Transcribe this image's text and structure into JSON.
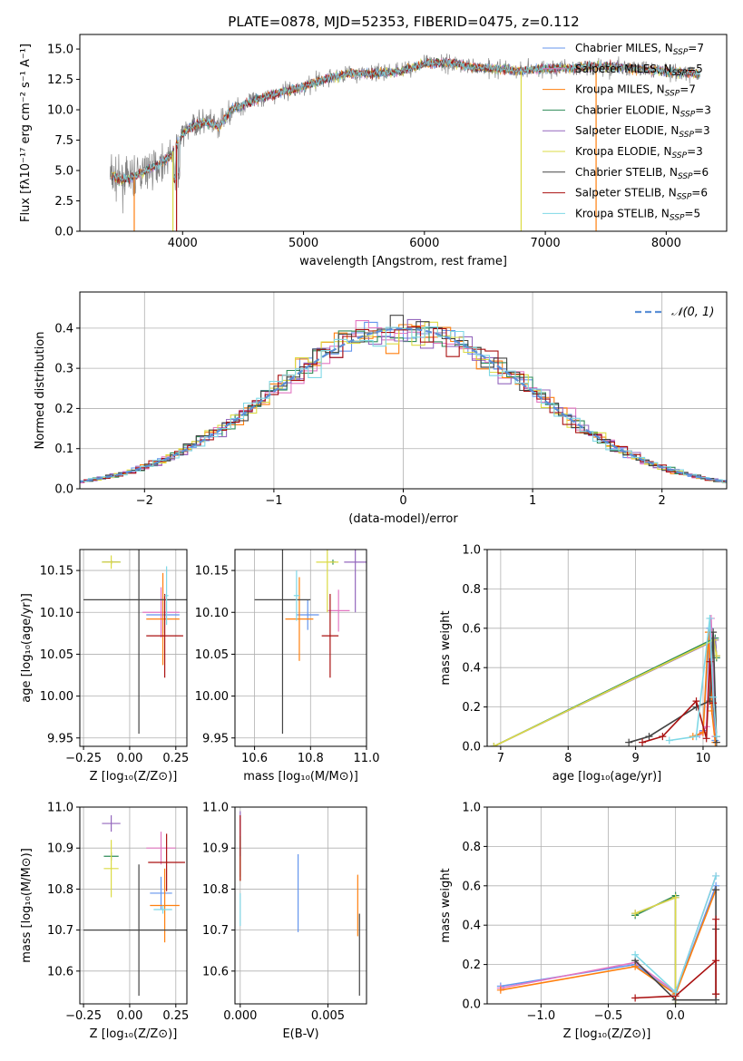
{
  "figure_title": "PLATE=0878, MJD=52353, FIBERID=0475, z=0.112",
  "colors": {
    "Chabrier MILES": "#6495ed",
    "Salpeter MILES": "#e377c2",
    "Kroupa MILES": "#ff7f0e",
    "Chabrier ELODIE": "#2e8b57",
    "Salpeter ELODIE": "#9467bd",
    "Kroupa ELODIE": "#dbdb44",
    "Chabrier STELIB": "#444444",
    "Salpeter STELIB": "#aa1111",
    "Kroupa STELIB": "#7fd8e6",
    "data": "#808080",
    "normal": "#5b8fd6"
  },
  "chart_data": [
    {
      "id": "spectrum",
      "type": "line",
      "title": "PLATE=0878, MJD=52353, FIBERID=0475, z=0.112",
      "xlabel": "wavelength [Angstrom, rest frame]",
      "ylabel": "Flux [fλ10⁻¹⁷ erg cm⁻² s⁻¹ A⁻¹]",
      "xlim": [
        3150,
        8500
      ],
      "ylim": [
        0,
        16.2
      ],
      "xticks": [
        4000,
        5000,
        6000,
        7000,
        8000
      ],
      "yticks": [
        0.0,
        2.5,
        5.0,
        7.5,
        10.0,
        12.5,
        15.0
      ],
      "continuum": {
        "x": [
          3400,
          3500,
          3600,
          3700,
          3800,
          3900,
          4000,
          4100,
          4200,
          4300,
          4400,
          4600,
          4800,
          5000,
          5200,
          5400,
          5600,
          5800,
          6000,
          6200,
          6400,
          6600,
          6800,
          7000,
          7200,
          7400,
          7600,
          7800,
          8000,
          8200,
          8280
        ],
        "y": [
          4.6,
          4.2,
          4.5,
          5.0,
          5.5,
          6.2,
          8.0,
          8.8,
          9.0,
          8.6,
          10.0,
          10.8,
          11.4,
          11.9,
          12.6,
          13.0,
          13.0,
          13.2,
          13.8,
          13.9,
          13.5,
          13.4,
          13.2,
          13.4,
          13.4,
          13.6,
          13.5,
          13.3,
          13.2,
          13.0,
          12.9
        ]
      },
      "series": [
        {
          "name": "Chabrier MILES",
          "nssp": "7"
        },
        {
          "name": "Salpeter MILES",
          "nssp": "5"
        },
        {
          "name": "Kroupa MILES",
          "nssp": "7"
        },
        {
          "name": "Chabrier ELODIE",
          "nssp": "3"
        },
        {
          "name": "Salpeter ELODIE",
          "nssp": "3"
        },
        {
          "name": "Kroupa ELODIE",
          "nssp": "3"
        },
        {
          "name": "Chabrier STELIB",
          "nssp": "6"
        },
        {
          "name": "Salpeter STELIB",
          "nssp": "6"
        },
        {
          "name": "Kroupa STELIB",
          "nssp": "5"
        }
      ],
      "legend_position": "right",
      "legend_prefix": "N",
      "legend_subscript": "SSP"
    },
    {
      "id": "residuals",
      "type": "histogram",
      "xlabel": "(data-model)/error",
      "ylabel": "Normed distribution",
      "xlim": [
        -2.5,
        2.5
      ],
      "ylim": [
        0,
        0.49
      ],
      "xticks": [
        -2,
        -1,
        0,
        1,
        2
      ],
      "yticks": [
        0.0,
        0.1,
        0.2,
        0.3,
        0.4
      ],
      "grid": true,
      "legend_label": "𝒩(0, 1)",
      "legend_position": "top-right",
      "bin_width": 0.1
    },
    {
      "id": "age_vs_Z",
      "type": "errorbar",
      "xlabel": "Z [log₁₀(Z/Z⊙)]",
      "ylabel": "age  [log₁₀(age/yr)]",
      "xlim": [
        -0.27,
        0.31
      ],
      "ylim": [
        9.94,
        10.175
      ],
      "xticks": [
        -0.25,
        0.0,
        0.25
      ],
      "xticklabels": [
        "−0.25",
        "0.00",
        "0.25"
      ],
      "yticks": [
        9.95,
        10.0,
        10.05,
        10.1,
        10.15
      ],
      "yticklabels": [
        "9.95",
        "10.00",
        "10.05",
        "10.10",
        "10.15"
      ],
      "grid": true,
      "points": [
        {
          "series": "Chabrier MILES",
          "x": 0.18,
          "xerr": 0.09,
          "y": 10.097,
          "yerr": 0.022
        },
        {
          "series": "Salpeter MILES",
          "x": 0.17,
          "xerr": 0.1,
          "y": 10.1,
          "yerr": 0.03
        },
        {
          "series": "Kroupa MILES",
          "x": 0.18,
          "xerr": 0.09,
          "y": 10.092,
          "yerr": 0.055
        },
        {
          "series": "Chabrier ELODIE",
          "x": -0.1,
          "xerr": 0.05,
          "y": 10.16,
          "yerr": 0.002
        },
        {
          "series": "Salpeter ELODIE",
          "x": -0.1,
          "xerr": 0.04,
          "y": 10.16,
          "yerr": 0.002
        },
        {
          "series": "Kroupa ELODIE",
          "x": -0.1,
          "xerr": 0.05,
          "y": 10.16,
          "yerr": 0.008
        },
        {
          "series": "Chabrier STELIB",
          "x": 0.05,
          "xerr": 0.3,
          "y": 10.115,
          "yerr": 0.16
        },
        {
          "series": "Salpeter STELIB",
          "x": 0.19,
          "xerr": 0.1,
          "y": 10.072,
          "yerr": 0.05
        },
        {
          "series": "Kroupa STELIB",
          "x": 0.2,
          "xerr": 0.01,
          "y": 10.12,
          "yerr": 0.035
        }
      ]
    },
    {
      "id": "age_vs_mass",
      "type": "errorbar",
      "xlabel": "mass [log₁₀(M/M⊙)]",
      "ylabel": "",
      "xlim": [
        10.53,
        11.0
      ],
      "ylim": [
        9.94,
        10.175
      ],
      "xticks": [
        10.6,
        10.8,
        11.0
      ],
      "xticklabels": [
        "10.6",
        "10.8",
        "11.0"
      ],
      "yticks": [
        9.95,
        10.0,
        10.05,
        10.1,
        10.15
      ],
      "yticklabels": [
        "9.95",
        "10.00",
        "10.05",
        "10.10",
        "10.15"
      ],
      "grid": true,
      "points": [
        {
          "series": "Chabrier MILES",
          "x": 10.79,
          "xerr": 0.04,
          "y": 10.097,
          "yerr": 0.018
        },
        {
          "series": "Salpeter MILES",
          "x": 10.9,
          "xerr": 0.04,
          "y": 10.102,
          "yerr": 0.025
        },
        {
          "series": "Kroupa MILES",
          "x": 10.76,
          "xerr": 0.05,
          "y": 10.092,
          "yerr": 0.05
        },
        {
          "series": "Chabrier ELODIE",
          "x": 10.88,
          "xerr": 0.01,
          "y": 10.16,
          "yerr": 0.003
        },
        {
          "series": "Salpeter ELODIE",
          "x": 10.96,
          "xerr": 0.04,
          "y": 10.16,
          "yerr": 0.06
        },
        {
          "series": "Kroupa ELODIE",
          "x": 10.86,
          "xerr": 0.04,
          "y": 10.16,
          "yerr": 0.06
        },
        {
          "series": "Chabrier STELIB",
          "x": 10.7,
          "xerr": 0.1,
          "y": 10.115,
          "yerr": 0.16
        },
        {
          "series": "Salpeter STELIB",
          "x": 10.87,
          "xerr": 0.03,
          "y": 10.072,
          "yerr": 0.05
        },
        {
          "series": "Kroupa STELIB",
          "x": 10.75,
          "xerr": 0.01,
          "y": 10.12,
          "yerr": 0.03
        }
      ]
    },
    {
      "id": "mass_vs_Z",
      "type": "errorbar",
      "xlabel": "Z [log₁₀(Z/Z⊙)]",
      "ylabel": "mass [log₁₀(M/M⊙)]",
      "xlim": [
        -0.27,
        0.31
      ],
      "ylim": [
        10.52,
        11.0
      ],
      "xticks": [
        -0.25,
        0.0,
        0.25
      ],
      "xticklabels": [
        "−0.25",
        "0.00",
        "0.25"
      ],
      "yticks": [
        10.6,
        10.7,
        10.8,
        10.9,
        11.0
      ],
      "yticklabels": [
        "10.6",
        "10.7",
        "10.8",
        "10.9",
        "11.0"
      ],
      "grid": true,
      "points": [
        {
          "series": "Chabrier MILES",
          "x": 0.17,
          "xerr": 0.06,
          "y": 10.79,
          "yerr": 0.04
        },
        {
          "series": "Salpeter MILES",
          "x": 0.17,
          "xerr": 0.08,
          "y": 10.9,
          "yerr": 0.04
        },
        {
          "series": "Kroupa MILES",
          "x": 0.19,
          "xerr": 0.08,
          "y": 10.76,
          "yerr": 0.09
        },
        {
          "series": "Chabrier ELODIE",
          "x": -0.1,
          "xerr": 0.04,
          "y": 10.88,
          "yerr": 0.01
        },
        {
          "series": "Salpeter ELODIE",
          "x": -0.1,
          "xerr": 0.05,
          "y": 10.96,
          "yerr": 0.02
        },
        {
          "series": "Kroupa ELODIE",
          "x": -0.1,
          "xerr": 0.04,
          "y": 10.85,
          "yerr": 0.07
        },
        {
          "series": "Chabrier STELIB",
          "x": 0.05,
          "xerr": 0.3,
          "y": 10.7,
          "yerr": 0.16
        },
        {
          "series": "Salpeter STELIB",
          "x": 0.2,
          "xerr": 0.1,
          "y": 10.865,
          "yerr": 0.07
        },
        {
          "series": "Kroupa STELIB",
          "x": 0.18,
          "xerr": 0.05,
          "y": 10.75,
          "yerr": 0.01
        }
      ]
    },
    {
      "id": "mass_vs_EBV",
      "type": "errorbar",
      "xlabel": "E(B-V)",
      "ylabel": "",
      "xlim": [
        -0.0003,
        0.0072
      ],
      "ylim": [
        10.52,
        11.0
      ],
      "xticks": [
        0.0,
        0.005
      ],
      "xticklabels": [
        "0.000",
        "0.005"
      ],
      "yticks": [
        10.6,
        10.7,
        10.8,
        10.9,
        11.0
      ],
      "yticklabels": [
        "10.6",
        "10.7",
        "10.8",
        "10.9",
        "11.0"
      ],
      "grid": true,
      "points": [
        {
          "series": "Chabrier MILES",
          "x": 0.0033,
          "xerr": 0,
          "y": 10.79,
          "yerr": 0.095
        },
        {
          "series": "Salpeter MILES",
          "x": 0.0,
          "xerr": 0,
          "y": 10.9,
          "yerr": 0.07
        },
        {
          "series": "Kroupa MILES",
          "x": 0.0067,
          "xerr": 0,
          "y": 10.76,
          "yerr": 0.075
        },
        {
          "series": "Chabrier ELODIE",
          "x": 0.0,
          "xerr": 0,
          "y": 10.88,
          "yerr": 0.05
        },
        {
          "series": "Salpeter ELODIE",
          "x": 0.0,
          "xerr": 0,
          "y": 10.96,
          "yerr": 0.03
        },
        {
          "series": "Kroupa ELODIE",
          "x": 0.0,
          "xerr": 0,
          "y": 10.85,
          "yerr": 0.03
        },
        {
          "series": "Chabrier STELIB",
          "x": 0.0068,
          "xerr": 0,
          "y": 10.64,
          "yerr": 0.1
        },
        {
          "series": "Salpeter STELIB",
          "x": 0.0,
          "xerr": 0,
          "y": 10.9,
          "yerr": 0.08
        },
        {
          "series": "Kroupa STELIB",
          "x": 0.0,
          "xerr": 0,
          "y": 10.75,
          "yerr": 0.04
        }
      ]
    },
    {
      "id": "weight_vs_age",
      "type": "line",
      "xlabel": "age  [log₁₀(age/yr)]",
      "ylabel": "mass weight",
      "xlim": [
        6.8,
        10.35
      ],
      "ylim": [
        0,
        1.0
      ],
      "xticks": [
        7,
        8,
        9,
        10
      ],
      "xticklabels": [
        "7",
        "8",
        "9",
        "10"
      ],
      "yticks": [
        0.0,
        0.2,
        0.4,
        0.6,
        0.8,
        1.0
      ],
      "yticklabels": [
        "0.0",
        "0.2",
        "0.4",
        "0.6",
        "0.8",
        "1.0"
      ],
      "grid": true,
      "series": [
        {
          "name": "Chabrier MILES",
          "x": [
            9.9,
            10.0,
            10.1,
            10.15,
            10.18
          ],
          "y": [
            0.05,
            0.08,
            0.6,
            0.2,
            0.03
          ]
        },
        {
          "name": "Salpeter MILES",
          "x": [
            9.95,
            10.05,
            10.12,
            10.18
          ],
          "y": [
            0.06,
            0.1,
            0.65,
            0.05
          ]
        },
        {
          "name": "Kroupa MILES",
          "x": [
            9.85,
            10.0,
            10.08,
            10.13,
            10.18
          ],
          "y": [
            0.05,
            0.07,
            0.58,
            0.18,
            0.02
          ]
        },
        {
          "name": "Chabrier ELODIE",
          "x": [
            6.9,
            10.18,
            10.2
          ],
          "y": [
            0.0,
            0.55,
            0.45
          ]
        },
        {
          "name": "Salpeter ELODIE",
          "x": [
            6.9,
            10.18,
            10.2
          ],
          "y": [
            0.0,
            0.54,
            0.46
          ]
        },
        {
          "name": "Kroupa ELODIE",
          "x": [
            6.9,
            10.16,
            10.2
          ],
          "y": [
            0.0,
            0.54,
            0.46
          ]
        },
        {
          "name": "Chabrier STELIB",
          "x": [
            8.9,
            9.2,
            9.9,
            10.1,
            10.15,
            10.2
          ],
          "y": [
            0.02,
            0.05,
            0.2,
            0.23,
            0.58,
            0.02
          ]
        },
        {
          "name": "Salpeter STELIB",
          "x": [
            9.1,
            9.4,
            9.9,
            10.05,
            10.1,
            10.15,
            10.2
          ],
          "y": [
            0.02,
            0.05,
            0.23,
            0.04,
            0.43,
            0.22,
            0.05
          ]
        },
        {
          "name": "Kroupa STELIB",
          "x": [
            9.5,
            9.9,
            10.1,
            10.15,
            10.2
          ],
          "y": [
            0.03,
            0.05,
            0.65,
            0.25,
            0.05
          ]
        }
      ]
    },
    {
      "id": "weight_vs_Z",
      "type": "line",
      "xlabel": "Z [log₁₀(Z/Z⊙)]",
      "ylabel": "mass weight",
      "xlim": [
        -1.4,
        0.38
      ],
      "ylim": [
        0,
        1.0
      ],
      "xticks": [
        -1.0,
        -0.5,
        0.0
      ],
      "xticklabels": [
        "−1.0",
        "−0.5",
        "0.0"
      ],
      "yticks": [
        0.0,
        0.2,
        0.4,
        0.6,
        0.8,
        1.0
      ],
      "yticklabels": [
        "0.0",
        "0.2",
        "0.4",
        "0.6",
        "0.8",
        "1.0"
      ],
      "grid": true,
      "series": [
        {
          "name": "Chabrier MILES",
          "x": [
            -1.3,
            -0.3,
            0.0,
            0.3
          ],
          "y": [
            0.09,
            0.2,
            0.05,
            0.6
          ]
        },
        {
          "name": "Salpeter MILES",
          "x": [
            -1.3,
            -0.3,
            0.0,
            0.3
          ],
          "y": [
            0.08,
            0.21,
            0.06,
            0.65
          ]
        },
        {
          "name": "Kroupa MILES",
          "x": [
            -1.3,
            -0.3,
            0.0,
            0.3
          ],
          "y": [
            0.07,
            0.19,
            0.05,
            0.58
          ]
        },
        {
          "name": "Chabrier ELODIE",
          "x": [
            -0.3,
            0.0,
            0.0
          ],
          "y": [
            0.45,
            0.55,
            0.0
          ]
        },
        {
          "name": "Salpeter ELODIE",
          "x": [
            -0.3,
            0.0,
            0.0
          ],
          "y": [
            0.46,
            0.54,
            0.0
          ]
        },
        {
          "name": "Kroupa ELODIE",
          "x": [
            -0.3,
            0.0,
            0.0
          ],
          "y": [
            0.46,
            0.54,
            0.0
          ]
        },
        {
          "name": "Chabrier STELIB",
          "x": [
            -0.3,
            0.0,
            0.3,
            0.3,
            0.3,
            0.3
          ],
          "y": [
            0.22,
            0.02,
            0.02,
            0.38,
            0.58,
            0.05
          ]
        },
        {
          "name": "Salpeter STELIB",
          "x": [
            -0.3,
            0.0,
            0.3,
            0.3,
            0.3
          ],
          "y": [
            0.03,
            0.04,
            0.22,
            0.43,
            0.05
          ]
        },
        {
          "name": "Kroupa STELIB",
          "x": [
            -0.3,
            0.0,
            0.3
          ],
          "y": [
            0.25,
            0.06,
            0.65
          ]
        }
      ]
    }
  ]
}
